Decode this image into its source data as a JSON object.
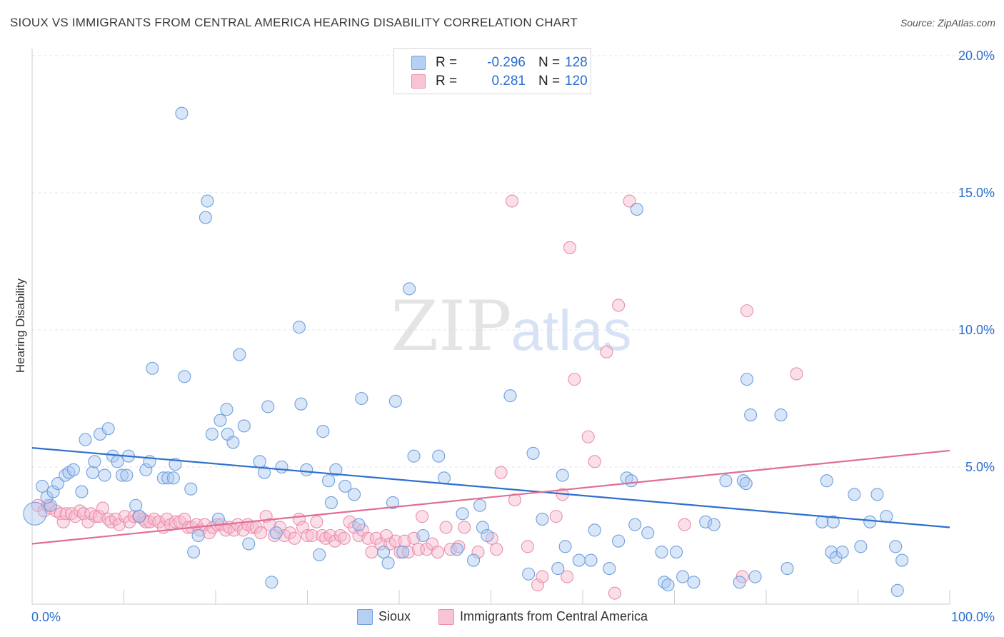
{
  "title": "SIOUX VS IMMIGRANTS FROM CENTRAL AMERICA HEARING DISABILITY CORRELATION CHART",
  "source": "Source: ZipAtlas.com",
  "watermark": {
    "zip": "ZIP",
    "atlas": "atlas"
  },
  "legend": {
    "rows": [
      {
        "r_label": "R =",
        "r_value": "-0.296",
        "n_label": "N =",
        "n_value": "128"
      },
      {
        "r_label": "R =",
        "r_value": "0.281",
        "n_label": "N =",
        "n_value": "120"
      }
    ]
  },
  "bottom_legend": [
    "Sioux",
    "Immigrants from Central America"
  ],
  "colors": {
    "sioux_fill": "#a9c8f0",
    "sioux_stroke": "#6fa0de",
    "sioux_line": "#2f6fce",
    "imm_fill": "#f6b8cb",
    "imm_stroke": "#ea8eab",
    "imm_line": "#e06d96",
    "axis_value": "#2a6fce"
  },
  "chart_data": {
    "type": "scatter",
    "title": "SIOUX VS IMMIGRANTS FROM CENTRAL AMERICA HEARING DISABILITY CORRELATION CHART",
    "xlabel": "",
    "ylabel": "Hearing Disability",
    "xlim": [
      0,
      100
    ],
    "ylim": [
      0,
      20
    ],
    "x_tick_labels": [
      "0.0%",
      "100.0%"
    ],
    "y_ticks": [
      5,
      10,
      15,
      20
    ],
    "y_tick_labels": [
      "5.0%",
      "10.0%",
      "15.0%",
      "20.0%"
    ],
    "grid": true,
    "legend_placement": "top-center",
    "series": [
      {
        "name": "Sioux",
        "r": -0.296,
        "n": 128,
        "trend": {
          "x": [
            0,
            100
          ],
          "y": [
            5.7,
            2.8
          ]
        },
        "points": [
          [
            0.3,
            3.3
          ],
          [
            1.1,
            4.3
          ],
          [
            2.0,
            3.6
          ],
          [
            1.6,
            3.9
          ],
          [
            2.3,
            4.1
          ],
          [
            2.8,
            4.4
          ],
          [
            3.6,
            4.7
          ],
          [
            4.0,
            4.8
          ],
          [
            4.5,
            4.9
          ],
          [
            5.4,
            4.1
          ],
          [
            5.8,
            6.0
          ],
          [
            6.6,
            4.8
          ],
          [
            6.8,
            5.2
          ],
          [
            7.4,
            6.2
          ],
          [
            7.9,
            4.7
          ],
          [
            8.3,
            6.4
          ],
          [
            8.8,
            5.4
          ],
          [
            9.3,
            5.2
          ],
          [
            9.8,
            4.7
          ],
          [
            10.3,
            4.7
          ],
          [
            10.5,
            5.4
          ],
          [
            11.3,
            3.6
          ],
          [
            11.7,
            3.2
          ],
          [
            12.4,
            4.9
          ],
          [
            12.8,
            5.2
          ],
          [
            13.1,
            8.6
          ],
          [
            14.3,
            4.6
          ],
          [
            14.8,
            4.6
          ],
          [
            15.4,
            4.6
          ],
          [
            15.6,
            5.1
          ],
          [
            16.3,
            17.9
          ],
          [
            16.6,
            8.3
          ],
          [
            17.3,
            4.2
          ],
          [
            17.6,
            1.9
          ],
          [
            18.1,
            2.5
          ],
          [
            18.9,
            14.1
          ],
          [
            19.1,
            14.7
          ],
          [
            19.6,
            6.2
          ],
          [
            20.3,
            3.1
          ],
          [
            20.5,
            6.7
          ],
          [
            21.2,
            7.1
          ],
          [
            21.3,
            6.2
          ],
          [
            21.9,
            5.9
          ],
          [
            22.6,
            9.1
          ],
          [
            23.1,
            6.5
          ],
          [
            23.6,
            2.2
          ],
          [
            24.8,
            5.2
          ],
          [
            25.3,
            4.8
          ],
          [
            25.7,
            7.2
          ],
          [
            26.1,
            0.8
          ],
          [
            26.6,
            2.6
          ],
          [
            27.2,
            5.0
          ],
          [
            29.1,
            10.1
          ],
          [
            29.3,
            7.3
          ],
          [
            29.9,
            4.9
          ],
          [
            31.3,
            1.8
          ],
          [
            31.7,
            6.3
          ],
          [
            32.3,
            4.5
          ],
          [
            32.6,
            3.7
          ],
          [
            33.1,
            4.9
          ],
          [
            34.1,
            4.3
          ],
          [
            35.1,
            4.0
          ],
          [
            35.6,
            2.9
          ],
          [
            35.9,
            7.5
          ],
          [
            38.3,
            1.9
          ],
          [
            38.8,
            1.5
          ],
          [
            39.3,
            3.7
          ],
          [
            39.6,
            7.4
          ],
          [
            40.4,
            1.9
          ],
          [
            41.1,
            11.5
          ],
          [
            41.6,
            5.4
          ],
          [
            42.6,
            2.5
          ],
          [
            44.3,
            5.4
          ],
          [
            44.9,
            4.6
          ],
          [
            46.3,
            2.0
          ],
          [
            46.9,
            3.3
          ],
          [
            48.1,
            1.6
          ],
          [
            48.8,
            3.6
          ],
          [
            49.1,
            2.8
          ],
          [
            49.6,
            2.5
          ],
          [
            52.1,
            7.6
          ],
          [
            54.1,
            1.1
          ],
          [
            54.6,
            5.5
          ],
          [
            55.6,
            3.1
          ],
          [
            57.3,
            1.3
          ],
          [
            57.8,
            4.7
          ],
          [
            58.1,
            2.1
          ],
          [
            59.6,
            1.6
          ],
          [
            60.9,
            1.6
          ],
          [
            61.3,
            2.7
          ],
          [
            62.9,
            1.3
          ],
          [
            63.9,
            2.3
          ],
          [
            64.8,
            4.6
          ],
          [
            65.3,
            4.5
          ],
          [
            65.7,
            2.9
          ],
          [
            65.9,
            14.4
          ],
          [
            67.1,
            2.6
          ],
          [
            68.6,
            1.9
          ],
          [
            68.9,
            0.8
          ],
          [
            69.3,
            0.7
          ],
          [
            70.2,
            1.9
          ],
          [
            70.9,
            1.0
          ],
          [
            72.1,
            0.8
          ],
          [
            73.4,
            3.0
          ],
          [
            74.3,
            2.9
          ],
          [
            75.6,
            4.5
          ],
          [
            77.1,
            0.8
          ],
          [
            77.5,
            4.5
          ],
          [
            77.8,
            4.4
          ],
          [
            77.9,
            8.2
          ],
          [
            78.3,
            6.9
          ],
          [
            78.8,
            1.0
          ],
          [
            81.6,
            6.9
          ],
          [
            82.3,
            1.3
          ],
          [
            86.1,
            3.0
          ],
          [
            86.6,
            4.5
          ],
          [
            87.1,
            1.9
          ],
          [
            87.3,
            3.0
          ],
          [
            87.6,
            1.7
          ],
          [
            88.3,
            1.9
          ],
          [
            89.6,
            4.0
          ],
          [
            90.3,
            2.1
          ],
          [
            91.3,
            3.0
          ],
          [
            92.1,
            4.0
          ],
          [
            93.1,
            3.2
          ],
          [
            94.1,
            2.1
          ],
          [
            94.3,
            0.5
          ],
          [
            94.8,
            1.6
          ]
        ]
      },
      {
        "name": "Immigrants from Central America",
        "r": 0.281,
        "n": 120,
        "trend": {
          "x": [
            0,
            100
          ],
          "y": [
            2.2,
            5.6
          ]
        },
        "points": [
          [
            0.6,
            3.6
          ],
          [
            1.3,
            3.4
          ],
          [
            1.7,
            3.6
          ],
          [
            2.0,
            3.5
          ],
          [
            2.6,
            3.4
          ],
          [
            3.1,
            3.3
          ],
          [
            3.4,
            3.0
          ],
          [
            3.7,
            3.3
          ],
          [
            4.3,
            3.3
          ],
          [
            4.7,
            3.2
          ],
          [
            5.2,
            3.4
          ],
          [
            5.6,
            3.3
          ],
          [
            6.1,
            3.0
          ],
          [
            6.4,
            3.3
          ],
          [
            6.9,
            3.2
          ],
          [
            7.3,
            3.2
          ],
          [
            7.7,
            3.5
          ],
          [
            8.3,
            3.1
          ],
          [
            8.6,
            3.0
          ],
          [
            9.1,
            3.1
          ],
          [
            9.5,
            2.9
          ],
          [
            10.1,
            3.2
          ],
          [
            10.6,
            3.0
          ],
          [
            11.1,
            3.2
          ],
          [
            11.6,
            3.2
          ],
          [
            12.1,
            3.1
          ],
          [
            12.4,
            3.0
          ],
          [
            12.8,
            3.0
          ],
          [
            13.3,
            3.1
          ],
          [
            13.8,
            3.0
          ],
          [
            14.3,
            2.8
          ],
          [
            14.7,
            3.1
          ],
          [
            15.1,
            2.9
          ],
          [
            15.6,
            3.0
          ],
          [
            16.1,
            3.0
          ],
          [
            16.6,
            3.1
          ],
          [
            17.0,
            2.8
          ],
          [
            17.4,
            2.8
          ],
          [
            17.9,
            2.9
          ],
          [
            18.3,
            2.7
          ],
          [
            18.8,
            2.9
          ],
          [
            19.3,
            2.6
          ],
          [
            19.7,
            2.8
          ],
          [
            20.2,
            2.9
          ],
          [
            20.6,
            2.9
          ],
          [
            21.1,
            2.7
          ],
          [
            21.5,
            2.8
          ],
          [
            22.0,
            2.7
          ],
          [
            22.4,
            2.9
          ],
          [
            23.0,
            2.7
          ],
          [
            23.5,
            2.9
          ],
          [
            24.0,
            2.8
          ],
          [
            24.4,
            2.8
          ],
          [
            24.9,
            2.6
          ],
          [
            25.5,
            3.2
          ],
          [
            25.9,
            2.9
          ],
          [
            26.4,
            2.5
          ],
          [
            27.0,
            2.8
          ],
          [
            27.5,
            2.5
          ],
          [
            28.1,
            2.6
          ],
          [
            28.6,
            2.4
          ],
          [
            29.1,
            3.1
          ],
          [
            29.5,
            2.8
          ],
          [
            30.0,
            2.5
          ],
          [
            30.5,
            2.5
          ],
          [
            31.0,
            3.0
          ],
          [
            31.6,
            2.5
          ],
          [
            32.0,
            2.4
          ],
          [
            32.5,
            2.5
          ],
          [
            33.0,
            2.3
          ],
          [
            33.6,
            2.5
          ],
          [
            34.0,
            2.4
          ],
          [
            34.6,
            3.0
          ],
          [
            35.1,
            2.8
          ],
          [
            35.6,
            2.5
          ],
          [
            36.0,
            2.7
          ],
          [
            36.6,
            2.4
          ],
          [
            37.0,
            1.9
          ],
          [
            37.5,
            2.4
          ],
          [
            38.0,
            2.2
          ],
          [
            38.6,
            2.5
          ],
          [
            39.0,
            2.2
          ],
          [
            39.6,
            2.3
          ],
          [
            40.1,
            1.9
          ],
          [
            40.6,
            2.3
          ],
          [
            41.0,
            1.9
          ],
          [
            41.6,
            2.4
          ],
          [
            42.1,
            2.0
          ],
          [
            42.5,
            3.2
          ],
          [
            43.0,
            2.0
          ],
          [
            43.6,
            2.2
          ],
          [
            44.2,
            1.9
          ],
          [
            45.1,
            2.8
          ],
          [
            45.6,
            2.0
          ],
          [
            46.5,
            2.1
          ],
          [
            47.1,
            2.8
          ],
          [
            48.6,
            1.9
          ],
          [
            50.1,
            2.4
          ],
          [
            50.6,
            2.0
          ],
          [
            51.1,
            4.8
          ],
          [
            52.3,
            14.7
          ],
          [
            52.6,
            3.8
          ],
          [
            54.0,
            2.1
          ],
          [
            55.1,
            0.7
          ],
          [
            55.6,
            1.0
          ],
          [
            57.1,
            3.2
          ],
          [
            57.8,
            4.0
          ],
          [
            58.3,
            1.0
          ],
          [
            58.6,
            13.0
          ],
          [
            59.1,
            8.2
          ],
          [
            60.6,
            6.1
          ],
          [
            61.3,
            5.2
          ],
          [
            62.6,
            9.2
          ],
          [
            63.5,
            0.4
          ],
          [
            63.9,
            10.9
          ],
          [
            65.1,
            14.7
          ],
          [
            71.1,
            2.9
          ],
          [
            77.4,
            1.0
          ],
          [
            77.9,
            10.7
          ],
          [
            83.3,
            8.4
          ]
        ]
      }
    ]
  }
}
